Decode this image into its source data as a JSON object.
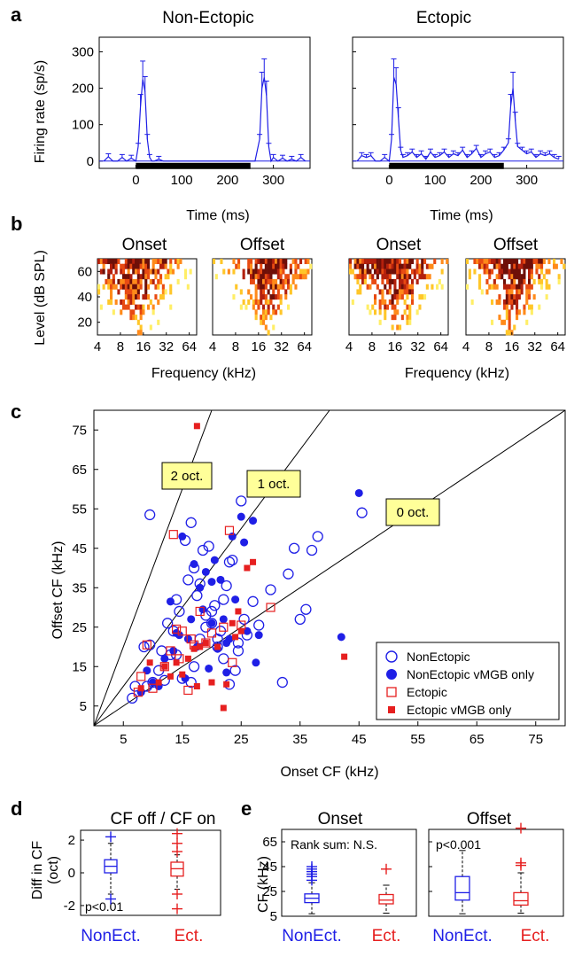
{
  "colors": {
    "blue": "#1f1fe6",
    "red": "#e61f1f",
    "heat": [
      "#ffee66",
      "#ffc629",
      "#ff8a1a",
      "#e84a12",
      "#b3200d",
      "#6e0f08"
    ],
    "label_box": "#ffff99"
  },
  "panels": {
    "a": {
      "letter": "a",
      "left_title": "Non-Ectopic",
      "right_title": "Ectopic",
      "ylabel": "Firing rate (sp/s)",
      "xlabel": "Time (ms)",
      "yticks": [
        "0",
        "100",
        "200",
        "300"
      ],
      "xticks": [
        "0",
        "100",
        "200",
        "300"
      ]
    },
    "b": {
      "letter": "b",
      "titles": [
        "Onset",
        "Offset",
        "Onset",
        "Offset"
      ],
      "ylabel": "Level (dB SPL)",
      "xlabel": "Frequency (kHz)",
      "yticks": [
        "20",
        "40",
        "60"
      ],
      "xticks": [
        "4",
        "8",
        "16",
        "32",
        "64"
      ]
    },
    "c": {
      "letter": "c",
      "xlabel": "Onset CF (kHz)",
      "ylabel": "Offset CF (kHz)",
      "ticks": [
        "5",
        "15",
        "25",
        "35",
        "45",
        "55",
        "65",
        "75"
      ],
      "octave_labels": [
        "2 oct.",
        "1 oct.",
        "0 oct."
      ],
      "legend": [
        "NonEctopic",
        "NonEctopic vMGB only",
        "Ectopic",
        "Ectopic vMGB only"
      ]
    },
    "d": {
      "letter": "d",
      "title": "CF off / CF on",
      "ylabel_line1": "Diff in CF",
      "ylabel_line2": "(oct)",
      "yticks": [
        "-2",
        "0",
        "2"
      ],
      "stat": "p<0.01",
      "xcats": [
        "NonEct.",
        "Ect."
      ]
    },
    "e": {
      "letter": "e",
      "left_title": "Onset",
      "right_title": "Offset",
      "ylabel": "CF (kHz)",
      "yticks": [
        "5",
        "25",
        "45",
        "65"
      ],
      "left_stat": "Rank sum: N.S.",
      "right_stat": "p<0.001",
      "xcats": [
        "NonEct.",
        "Ect."
      ]
    }
  },
  "chart_data": [
    {
      "panel": "a",
      "type": "line",
      "xlabel": "Time (ms)",
      "ylabel": "Firing rate (sp/s)",
      "xlim": [
        -80,
        380
      ],
      "ylim": [
        -20,
        340
      ],
      "stimulus_bar_ms": [
        0,
        250
      ],
      "series": [
        {
          "x": [
            -70,
            -60,
            -50,
            -40,
            -30,
            -20,
            -10,
            0,
            5,
            10,
            15,
            20,
            25,
            30,
            35,
            40,
            50,
            60,
            80,
            100,
            150,
            200,
            230,
            250,
            260,
            270,
            275,
            280,
            285,
            290,
            295,
            300,
            310,
            320,
            330,
            340,
            350,
            360,
            370
          ],
          "values": [
            0,
            12,
            0,
            0,
            10,
            0,
            8,
            0,
            40,
            150,
            225,
            190,
            60,
            10,
            0,
            0,
            5,
            0,
            0,
            0,
            0,
            0,
            0,
            0,
            0,
            60,
            200,
            230,
            180,
            40,
            0,
            10,
            0,
            8,
            0,
            5,
            0,
            10,
            0
          ]
        },
        {
          "x": [
            -70,
            -60,
            -50,
            -40,
            -30,
            -20,
            -10,
            0,
            5,
            10,
            15,
            20,
            25,
            30,
            40,
            50,
            60,
            70,
            80,
            90,
            100,
            110,
            120,
            130,
            140,
            150,
            160,
            170,
            180,
            190,
            200,
            210,
            220,
            230,
            240,
            250,
            260,
            265,
            270,
            275,
            280,
            290,
            300,
            310,
            320,
            330,
            340,
            350,
            360,
            370
          ],
          "values": [
            0,
            15,
            10,
            15,
            0,
            0,
            10,
            0,
            60,
            230,
            210,
            120,
            30,
            10,
            15,
            25,
            10,
            20,
            5,
            25,
            10,
            15,
            25,
            10,
            20,
            15,
            30,
            10,
            20,
            35,
            10,
            20,
            25,
            10,
            15,
            30,
            50,
            150,
            200,
            110,
            40,
            30,
            20,
            25,
            10,
            20,
            15,
            20,
            10,
            5
          ]
        }
      ]
    },
    {
      "panel": "c",
      "type": "scatter",
      "xlabel": "Onset CF (kHz)",
      "ylabel": "Offset CF (kHz)",
      "xlim": [
        0,
        80
      ],
      "ylim": [
        0,
        80
      ],
      "reference_lines_oct": [
        2,
        1,
        0
      ],
      "series": [
        {
          "name": "NonEctopic",
          "x": [
            6.5,
            7.0,
            8.5,
            9.0,
            9.5,
            10.0,
            11.0,
            11.5,
            12.0,
            12.5,
            13.0,
            13.5,
            14.0,
            14.5,
            15.0,
            15.5,
            16.0,
            16.5,
            17.0,
            17.5,
            18.0,
            18.5,
            19.0,
            19.5,
            20.0,
            20.5,
            21.0,
            21.5,
            22.0,
            22.5,
            23.0,
            23.5,
            24.0,
            24.5,
            25.0,
            25.5,
            26.0,
            27.0,
            28.0,
            30.0,
            32.0,
            33.0,
            34.0,
            35.0,
            36.0,
            37.0,
            38.0,
            45.5,
            9.5,
            14.0,
            16.5,
            17.0,
            18.0,
            19.0,
            20.0,
            21.0,
            22.0,
            23.0,
            24.5
          ],
          "values": [
            7.0,
            10.0,
            20.0,
            10.0,
            53.5,
            11.0,
            14.0,
            19.0,
            11.5,
            26.0,
            18.0,
            24.0,
            32.0,
            29.0,
            12.0,
            47.0,
            37.0,
            11.0,
            15.0,
            33.0,
            22.0,
            44.5,
            28.0,
            45.5,
            26.0,
            30.5,
            20.0,
            24.0,
            17.0,
            35.5,
            10.5,
            42.0,
            14.0,
            21.0,
            57.0,
            27.0,
            23.0,
            31.5,
            25.5,
            34.5,
            11.0,
            38.5,
            45.0,
            27.0,
            29.5,
            44.5,
            48.0,
            54.0,
            20.5,
            18.0,
            51.5,
            40.0,
            36.0,
            25.0,
            29.0,
            22.0,
            32.0,
            41.5,
            19.0
          ]
        },
        {
          "name": "NonEctopic vMGB only",
          "x": [
            8.0,
            9.0,
            10.0,
            11.0,
            12.0,
            13.0,
            13.5,
            14.0,
            15.0,
            15.5,
            16.0,
            16.5,
            17.0,
            18.0,
            18.5,
            19.0,
            19.5,
            20.0,
            20.5,
            21.0,
            21.5,
            22.0,
            22.5,
            23.0,
            23.5,
            24.0,
            25.0,
            25.5,
            26.0,
            27.0,
            27.5,
            28.0,
            42.0,
            45.0,
            14.5,
            17.5,
            20.0,
            22.5
          ],
          "values": [
            8.5,
            14.0,
            11.0,
            10.0,
            17.0,
            31.5,
            19.0,
            23.5,
            48.0,
            12.0,
            22.0,
            27.0,
            41.0,
            35.0,
            29.5,
            39.0,
            14.5,
            26.0,
            42.0,
            19.5,
            37.0,
            27.0,
            13.5,
            22.0,
            48.0,
            32.0,
            53.0,
            46.5,
            24.0,
            52.0,
            16.0,
            23.0,
            22.5,
            59.0,
            23.0,
            20.0,
            36.5,
            21.0
          ]
        },
        {
          "name": "Ectopic",
          "x": [
            7.5,
            8.0,
            9.0,
            10.0,
            12.0,
            13.0,
            14.0,
            14.5,
            15.0,
            16.0,
            16.5,
            17.0,
            18.0,
            19.0,
            20.0,
            22.0,
            23.0,
            23.5,
            25.0,
            30.0,
            13.5
          ],
          "values": [
            8.5,
            12.5,
            20.5,
            9.5,
            15.0,
            19.0,
            24.5,
            17.0,
            24.0,
            9.0,
            22.0,
            20.5,
            29.0,
            21.0,
            23.5,
            25.0,
            49.5,
            16.0,
            25.5,
            30.0,
            48.5
          ]
        },
        {
          "name": "Ectopic vMGB only",
          "x": [
            8.0,
            9.5,
            11.0,
            12.0,
            13.0,
            14.0,
            15.0,
            16.0,
            17.0,
            17.5,
            18.0,
            19.0,
            20.0,
            21.0,
            22.0,
            22.5,
            23.5,
            24.0,
            24.5,
            25.0,
            26.0,
            27.0,
            17.5,
            42.5
          ],
          "values": [
            9.5,
            16.0,
            11.0,
            15.0,
            12.5,
            16.0,
            13.0,
            17.0,
            19.5,
            76.0,
            20.0,
            21.0,
            11.0,
            20.0,
            4.5,
            10.5,
            26.0,
            22.5,
            29.0,
            24.0,
            40.0,
            41.5,
            10.0,
            17.5
          ]
        }
      ]
    },
    {
      "panel": "d",
      "type": "box",
      "title": "CF off / CF on",
      "ylabel": "Diff in CF (oct)",
      "ylim": [
        -2.6,
        2.6
      ],
      "categories": [
        "NonEct.",
        "Ect."
      ],
      "series": [
        {
          "q1": 0.0,
          "median": 0.4,
          "q3": 0.8,
          "whisker_low": -1.3,
          "whisker_high": 1.8,
          "outliers": [
            -1.6,
            2.2
          ]
        },
        {
          "q1": -0.2,
          "median": 0.25,
          "q3": 0.65,
          "whisker_low": -1.0,
          "whisker_high": 1.1,
          "outliers": [
            -1.3,
            1.3,
            1.8,
            2.4,
            -2.2
          ]
        }
      ]
    },
    {
      "panel": "e-onset",
      "type": "box",
      "title": "Onset",
      "ylabel": "CF (kHz)",
      "ylim": [
        5,
        75
      ],
      "categories": [
        "NonEct.",
        "Ect."
      ],
      "series": [
        {
          "q1": 16,
          "median": 19.5,
          "q3": 23,
          "whisker_low": 7,
          "whisker_high": 32,
          "outliers": [
            34,
            37,
            39,
            41,
            43,
            45
          ]
        },
        {
          "q1": 15,
          "median": 18,
          "q3": 22.5,
          "whisker_low": 7.5,
          "whisker_high": 30,
          "outliers": [
            43
          ]
        }
      ]
    },
    {
      "panel": "e-offset",
      "type": "box",
      "title": "Offset",
      "ylabel": "CF (kHz)",
      "ylim": [
        5,
        75
      ],
      "categories": [
        "NonEct.",
        "Ect."
      ],
      "series": [
        {
          "q1": 18,
          "median": 24,
          "q3": 37,
          "whisker_low": 7,
          "whisker_high": 58,
          "outliers": []
        },
        {
          "q1": 14,
          "median": 17.5,
          "q3": 24,
          "whisker_low": 7.5,
          "whisker_high": 40,
          "outliers": [
            46,
            48,
            76
          ]
        }
      ]
    }
  ]
}
